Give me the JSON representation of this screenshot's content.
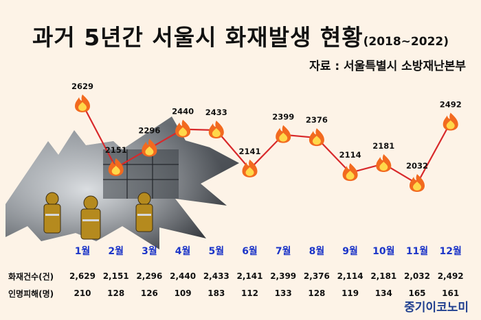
{
  "title": {
    "main": "과거 5년간 서울시 화재발생 현황",
    "period": "(2018~2022)"
  },
  "source": "자료 : 서울특별시 소방재난본부",
  "brand": "중기이코노미",
  "table": {
    "fires_label": "화재건수(건)",
    "casualties_label": "인명피해(명)"
  },
  "colors": {
    "line": "#d8292b",
    "month_label": "#1c35c8",
    "background": "#fdf3e7",
    "flame_outer": "#f26a1f",
    "flame_inner": "#ffd84a"
  },
  "icons": {
    "marker": "flame-icon",
    "photo": "firefighters-photo-burst"
  },
  "chart_data": {
    "type": "line",
    "categories": [
      "1월",
      "2월",
      "3월",
      "4월",
      "5월",
      "6월",
      "7월",
      "8월",
      "9월",
      "10월",
      "11월",
      "12월"
    ],
    "series": [
      {
        "values": [
          2629,
          2151,
          2296,
          2440,
          2433,
          2141,
          2399,
          2376,
          2114,
          2181,
          2032,
          2492
        ]
      }
    ],
    "data_labels": [
      "2629",
      "2151",
      "2296",
      "2440",
      "2433",
      "2141",
      "2399",
      "2376",
      "2114",
      "2181",
      "2032",
      "2492"
    ],
    "fires_row": [
      "2,629",
      "2,151",
      "2,296",
      "2,440",
      "2,433",
      "2,141",
      "2,399",
      "2,376",
      "2,114",
      "2,181",
      "2,032",
      "2,492"
    ],
    "casualties_row": [
      "210",
      "128",
      "126",
      "109",
      "183",
      "112",
      "133",
      "128",
      "119",
      "134",
      "165",
      "161"
    ],
    "ylim": [
      1950,
      2700
    ],
    "grid": false,
    "legend": "none"
  }
}
